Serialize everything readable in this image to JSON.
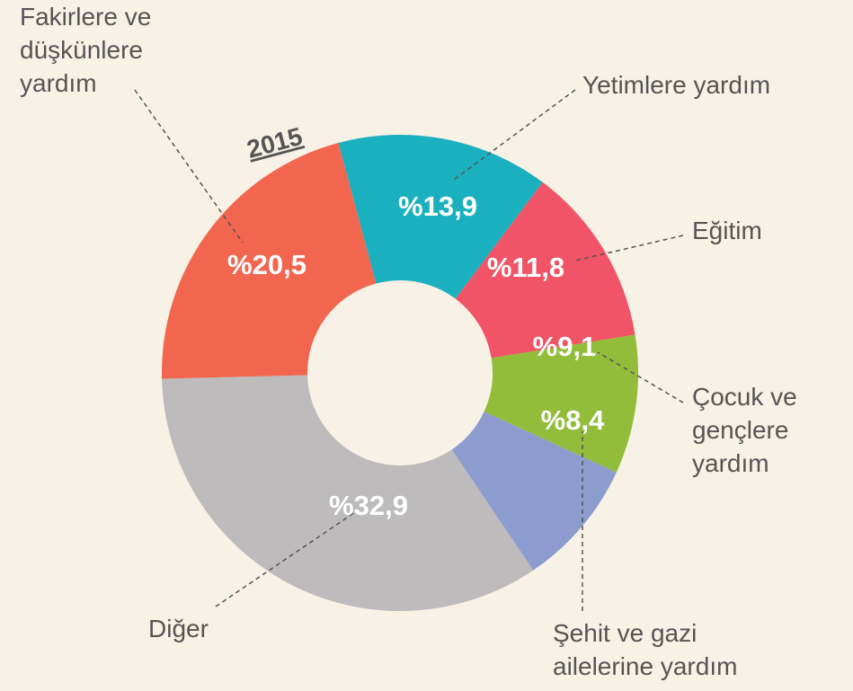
{
  "chart_data": {
    "type": "donut",
    "title": "2015",
    "categories": [
      "Yetimlere yardım",
      "Eğitim",
      "Çocuk ve gençlere yardım",
      "Şehit ve gazi ailelerine yardım",
      "Diğer",
      "Fakirlere ve düşkünlere yardım"
    ],
    "values": [
      13.9,
      11.8,
      9.1,
      8.4,
      32.9,
      20.5
    ],
    "value_labels": [
      "%13,9",
      "%11,8",
      "%9,1",
      "%8,4",
      "%32,9",
      "%20,5"
    ],
    "colors": [
      "#1bb0bf",
      "#f05466",
      "#92bd3a",
      "#8d9ccf",
      "#bdbbbb",
      "#f26650"
    ]
  }
}
